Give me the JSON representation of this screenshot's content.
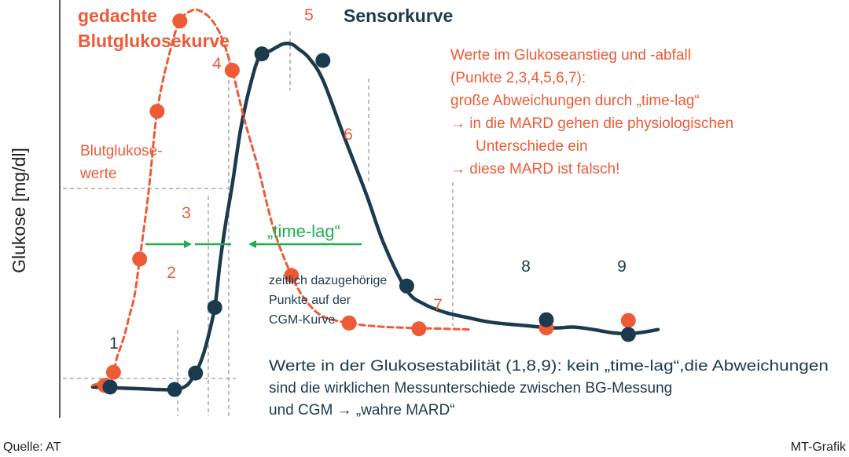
{
  "chart_data": {
    "type": "line",
    "title": "",
    "ylabel": "Glukose [mg/dl]",
    "xlabel": "",
    "grid": false,
    "colors": {
      "blood": "#ef5a36",
      "sensor": "#1c3a4e",
      "timelag": "#1fae4b",
      "guide": "#9a9a9a"
    },
    "series": [
      {
        "name": "gedachte Blutglukosekurve",
        "name_lines": [
          "gedachte",
          "Blutglukosekurve"
        ],
        "style": "dashed",
        "curve": [
          [
            0.8,
            16
          ],
          [
            1.2,
            19
          ],
          [
            1.6,
            24
          ],
          [
            2.0,
            32
          ],
          [
            2.2,
            50
          ],
          [
            2.6,
            75
          ],
          [
            2.9,
            100
          ],
          [
            3.2,
            125
          ],
          [
            3.5,
            170
          ],
          [
            4.0,
            250
          ],
          [
            4.5,
            350
          ],
          [
            5.2,
            420
          ],
          [
            5.8,
            460
          ],
          [
            6.5,
            473
          ],
          [
            7.0,
            472
          ],
          [
            7.6,
            462
          ],
          [
            8.2,
            440
          ],
          [
            8.8,
            400
          ],
          [
            9.5,
            340
          ],
          [
            10.3,
            280
          ],
          [
            11.2,
            205
          ],
          [
            12.2,
            150
          ],
          [
            13.0,
            120
          ],
          [
            14.0,
            100
          ],
          [
            15.5,
            92
          ],
          [
            17.0,
            88
          ],
          [
            19.0,
            86
          ],
          [
            21.0,
            85
          ],
          [
            22.5,
            84
          ]
        ],
        "points": [
          {
            "x": 2.0,
            "y": 32
          },
          {
            "x": 3.5,
            "y": 170
          },
          {
            "x": 4.5,
            "y": 350
          },
          {
            "x": 5.8,
            "y": 460
          },
          {
            "x": 8.8,
            "y": 400
          },
          {
            "x": 12.2,
            "y": 150
          },
          {
            "x": 15.5,
            "y": 92
          },
          {
            "x": 19.5,
            "y": 85
          }
        ]
      },
      {
        "name": "Sensorkurve",
        "style": "solid",
        "curve": [
          [
            0.8,
            14
          ],
          [
            2.0,
            13
          ],
          [
            3.4,
            12
          ],
          [
            4.4,
            11
          ],
          [
            5.5,
            11
          ],
          [
            6.2,
            16
          ],
          [
            6.7,
            31
          ],
          [
            7.0,
            45
          ],
          [
            7.3,
            65
          ],
          [
            7.8,
            111
          ],
          [
            8.1,
            165
          ],
          [
            8.4,
            210
          ],
          [
            8.8,
            260
          ],
          [
            9.3,
            330
          ],
          [
            9.9,
            387
          ],
          [
            10.4,
            418
          ],
          [
            11.0,
            424
          ],
          [
            11.7,
            432
          ],
          [
            12.2,
            432
          ],
          [
            12.6,
            426
          ],
          [
            13.2,
            415
          ],
          [
            14.0,
            388
          ],
          [
            15.2,
            320
          ],
          [
            16.5,
            248
          ],
          [
            17.5,
            188
          ],
          [
            18.8,
            132
          ],
          [
            19.8,
            115
          ],
          [
            21.0,
            105
          ],
          [
            22.2,
            99
          ],
          [
            23.6,
            93
          ],
          [
            25.5,
            89
          ],
          [
            27.2,
            86
          ],
          [
            28.4,
            87
          ],
          [
            29.5,
            84
          ],
          [
            30.6,
            80
          ],
          [
            31.5,
            79
          ],
          [
            32.4,
            81
          ],
          [
            33.2,
            84
          ]
        ],
        "points": [
          {
            "x": 1.8,
            "y": 14
          },
          {
            "x": 5.5,
            "y": 11
          },
          {
            "x": 6.7,
            "y": 31
          },
          {
            "x": 7.8,
            "y": 111
          },
          {
            "x": 10.5,
            "y": 420
          },
          {
            "x": 14.0,
            "y": 412
          },
          {
            "x": 18.8,
            "y": 137
          },
          {
            "x": 26.8,
            "y": 96
          },
          {
            "x": 31.5,
            "y": 78
          }
        ],
        "blood_points": [
          {
            "x": 1.5,
            "y": 16
          },
          {
            "x": 15.5,
            "y": 92
          },
          {
            "x": 26.8,
            "y": 86
          },
          {
            "x": 31.5,
            "y": 95
          }
        ]
      }
    ],
    "point_labels": [
      "1",
      "2",
      "3",
      "4",
      "5",
      "6",
      "7",
      "8",
      "9"
    ],
    "annotations": {
      "bg_values": [
        "Blutglukose-",
        "werte"
      ],
      "timelag": "„time-lag“",
      "corresponding": [
        "zeitlich dazugehörige",
        "Punkte auf der",
        "CGM-Kurve"
      ],
      "rise_fall": [
        "Werte im Glukoseanstieg und -abfall",
        "(Punkte 2,3,4,5,6,7):",
        "große Abweichungen durch „time-lag“",
        "→ in die MARD gehen die physiologischen",
        "Unterschiede ein",
        "→ diese MARD ist falsch!"
      ],
      "stable": [
        "Werte in der Glukosestabilität (1,8,9): kein „time-lag“,die Abweichungen",
        "sind die wirklichen Messunterschiede zwischen BG-Messung",
        "und CGM → „wahre MARD“"
      ]
    }
  },
  "footer": {
    "source": "Quelle: AT",
    "credit": "MT-Grafik"
  }
}
